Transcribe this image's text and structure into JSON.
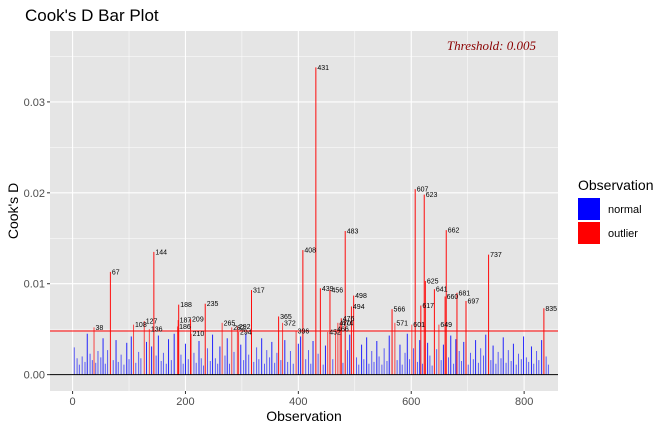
{
  "chart_data": {
    "type": "bar",
    "title": "Cook's D Bar Plot",
    "xlabel": "Observation",
    "ylabel": "Cook's D",
    "xlim": [
      -40,
      860
    ],
    "ylim": [
      -0.0018,
      0.0378
    ],
    "x_ticks": [
      0,
      200,
      400,
      600,
      800
    ],
    "x_tick_labels": [
      "0",
      "200",
      "400",
      "600",
      "800"
    ],
    "y_ticks": [
      0,
      0.01,
      0.02,
      0.03
    ],
    "y_tick_labels": [
      "0.00",
      "0.01",
      "0.02",
      "0.03"
    ],
    "threshold": 0.0048,
    "threshold_label": "Threshold: 0.005",
    "grid": true,
    "legend": {
      "title": "Observation",
      "position": "right",
      "entries": [
        {
          "label": "normal",
          "color": "#0000ff"
        },
        {
          "label": "outlier",
          "color": "#ff0000"
        }
      ]
    },
    "colors": {
      "panel": "#e5e5e5",
      "grid": "#ffffff",
      "normal": "#0000ff",
      "outlier": "#ff0000",
      "threshold_line": "#ff0000",
      "threshold_text": "#8b0000"
    },
    "outliers": [
      {
        "x": 38,
        "y": 0.0052,
        "label": "38"
      },
      {
        "x": 67,
        "y": 0.0113,
        "label": "67"
      },
      {
        "x": 108,
        "y": 0.0055,
        "label": "108"
      },
      {
        "x": 127,
        "y": 0.0059,
        "label": "127"
      },
      {
        "x": 136,
        "y": 0.005,
        "label": "136"
      },
      {
        "x": 144,
        "y": 0.0135,
        "label": "144"
      },
      {
        "x": 186,
        "y": 0.0053,
        "label": "186"
      },
      {
        "x": 187,
        "y": 0.006,
        "label": "187"
      },
      {
        "x": 188,
        "y": 0.0077,
        "label": "188"
      },
      {
        "x": 209,
        "y": 0.0061,
        "label": "209"
      },
      {
        "x": 210,
        "y": 0.0045,
        "label": "210"
      },
      {
        "x": 235,
        "y": 0.0078,
        "label": "235"
      },
      {
        "x": 265,
        "y": 0.0057,
        "label": "265"
      },
      {
        "x": 282,
        "y": 0.0052,
        "label": "282"
      },
      {
        "x": 292,
        "y": 0.0053,
        "label": "292"
      },
      {
        "x": 294,
        "y": 0.0047,
        "label": "294"
      },
      {
        "x": 317,
        "y": 0.0093,
        "label": "317"
      },
      {
        "x": 365,
        "y": 0.0064,
        "label": "365"
      },
      {
        "x": 372,
        "y": 0.0057,
        "label": "372"
      },
      {
        "x": 396,
        "y": 0.0048,
        "label": "396"
      },
      {
        "x": 408,
        "y": 0.0137,
        "label": "408"
      },
      {
        "x": 431,
        "y": 0.0338,
        "label": "431"
      },
      {
        "x": 439,
        "y": 0.0095,
        "label": "439"
      },
      {
        "x": 452,
        "y": 0.0047,
        "label": "452"
      },
      {
        "x": 456,
        "y": 0.0093,
        "label": "456"
      },
      {
        "x": 466,
        "y": 0.005,
        "label": "466"
      },
      {
        "x": 470,
        "y": 0.0057,
        "label": "470"
      },
      {
        "x": 474,
        "y": 0.0057,
        "label": "474"
      },
      {
        "x": 476,
        "y": 0.0062,
        "label": "476"
      },
      {
        "x": 483,
        "y": 0.0158,
        "label": "483"
      },
      {
        "x": 494,
        "y": 0.0075,
        "label": "494"
      },
      {
        "x": 498,
        "y": 0.0087,
        "label": "498"
      },
      {
        "x": 566,
        "y": 0.0072,
        "label": "566"
      },
      {
        "x": 571,
        "y": 0.0057,
        "label": "571"
      },
      {
        "x": 601,
        "y": 0.0055,
        "label": "601"
      },
      {
        "x": 607,
        "y": 0.0204,
        "label": "607"
      },
      {
        "x": 617,
        "y": 0.0076,
        "label": "617"
      },
      {
        "x": 623,
        "y": 0.0198,
        "label": "623"
      },
      {
        "x": 625,
        "y": 0.0103,
        "label": "625"
      },
      {
        "x": 641,
        "y": 0.0094,
        "label": "641"
      },
      {
        "x": 649,
        "y": 0.0055,
        "label": "649"
      },
      {
        "x": 660,
        "y": 0.0086,
        "label": "660"
      },
      {
        "x": 662,
        "y": 0.0159,
        "label": "662"
      },
      {
        "x": 681,
        "y": 0.009,
        "label": "681"
      },
      {
        "x": 697,
        "y": 0.0081,
        "label": "697"
      },
      {
        "x": 737,
        "y": 0.0132,
        "label": "737"
      },
      {
        "x": 835,
        "y": 0.0073,
        "label": "835"
      }
    ],
    "normal_points": [
      [
        3,
        0.003
      ],
      [
        8,
        0.0018
      ],
      [
        12,
        0.0011
      ],
      [
        17,
        0.002
      ],
      [
        22,
        0.0014
      ],
      [
        26,
        0.0045
      ],
      [
        31,
        0.0023
      ],
      [
        35,
        0.0016
      ],
      [
        41,
        0.0013
      ],
      [
        45,
        0.0026
      ],
      [
        50,
        0.0019
      ],
      [
        54,
        0.004
      ],
      [
        58,
        0.0012
      ],
      [
        62,
        0.0027
      ],
      [
        72,
        0.0016
      ],
      [
        77,
        0.0038
      ],
      [
        81,
        0.0014
      ],
      [
        86,
        0.0022
      ],
      [
        91,
        0.0011
      ],
      [
        96,
        0.0035
      ],
      [
        100,
        0.0017
      ],
      [
        104,
        0.0042
      ],
      [
        112,
        0.0013
      ],
      [
        117,
        0.0025
      ],
      [
        121,
        0.0018
      ],
      [
        131,
        0.0036
      ],
      [
        140,
        0.0031
      ],
      [
        148,
        0.0021
      ],
      [
        152,
        0.0043
      ],
      [
        157,
        0.0015
      ],
      [
        161,
        0.0024
      ],
      [
        166,
        0.0012
      ],
      [
        170,
        0.0039
      ],
      [
        175,
        0.0016
      ],
      [
        180,
        0.0045
      ],
      [
        192,
        0.0022
      ],
      [
        196,
        0.0012
      ],
      [
        200,
        0.0034
      ],
      [
        205,
        0.0017
      ],
      [
        215,
        0.0024
      ],
      [
        219,
        0.0013
      ],
      [
        224,
        0.0037
      ],
      [
        228,
        0.0018
      ],
      [
        232,
        0.001
      ],
      [
        239,
        0.0029
      ],
      [
        244,
        0.0015
      ],
      [
        248,
        0.0044
      ],
      [
        253,
        0.0018
      ],
      [
        257,
        0.0012
      ],
      [
        261,
        0.0031
      ],
      [
        270,
        0.0021
      ],
      [
        274,
        0.004
      ],
      [
        278,
        0.0012
      ],
      [
        286,
        0.0025
      ],
      [
        298,
        0.0033
      ],
      [
        303,
        0.0016
      ],
      [
        307,
        0.0045
      ],
      [
        312,
        0.0022
      ],
      [
        321,
        0.0014
      ],
      [
        326,
        0.003
      ],
      [
        330,
        0.0017
      ],
      [
        335,
        0.004
      ],
      [
        340,
        0.0012
      ],
      [
        344,
        0.0027
      ],
      [
        349,
        0.0019
      ],
      [
        353,
        0.0036
      ],
      [
        358,
        0.0013
      ],
      [
        362,
        0.0024
      ],
      [
        369,
        0.0016
      ],
      [
        376,
        0.0038
      ],
      [
        381,
        0.0014
      ],
      [
        386,
        0.0026
      ],
      [
        391,
        0.0012
      ],
      [
        400,
        0.0034
      ],
      [
        404,
        0.0042
      ],
      [
        413,
        0.0017
      ],
      [
        418,
        0.0027
      ],
      [
        422,
        0.0012
      ],
      [
        426,
        0.0037
      ],
      [
        435,
        0.0023
      ],
      [
        444,
        0.0011
      ],
      [
        448,
        0.0032
      ],
      [
        461,
        0.0017
      ],
      [
        479,
        0.0013
      ],
      [
        487,
        0.0027
      ],
      [
        491,
        0.0044
      ],
      [
        503,
        0.0019
      ],
      [
        507,
        0.0011
      ],
      [
        512,
        0.0033
      ],
      [
        516,
        0.0017
      ],
      [
        521,
        0.0041
      ],
      [
        525,
        0.0012
      ],
      [
        530,
        0.0026
      ],
      [
        534,
        0.0014
      ],
      [
        539,
        0.0037
      ],
      [
        543,
        0.002
      ],
      [
        548,
        0.0011
      ],
      [
        552,
        0.0029
      ],
      [
        557,
        0.0015
      ],
      [
        561,
        0.0043
      ],
      [
        575,
        0.0016
      ],
      [
        580,
        0.0033
      ],
      [
        584,
        0.0011
      ],
      [
        589,
        0.0024
      ],
      [
        593,
        0.0045
      ],
      [
        597,
        0.0017
      ],
      [
        604,
        0.0029
      ],
      [
        611,
        0.0014
      ],
      [
        615,
        0.0038
      ],
      [
        620,
        0.0012
      ],
      [
        629,
        0.0035
      ],
      [
        633,
        0.0021
      ],
      [
        637,
        0.001
      ],
      [
        645,
        0.0028
      ],
      [
        653,
        0.0016
      ],
      [
        657,
        0.0033
      ],
      [
        666,
        0.0019
      ],
      [
        670,
        0.0043
      ],
      [
        675,
        0.0012
      ],
      [
        679,
        0.0039
      ],
      [
        685,
        0.0026
      ],
      [
        689,
        0.0015
      ],
      [
        693,
        0.0036
      ],
      [
        701,
        0.0011
      ],
      [
        705,
        0.0024
      ],
      [
        710,
        0.0017
      ],
      [
        714,
        0.0038
      ],
      [
        719,
        0.0013
      ],
      [
        723,
        0.0029
      ],
      [
        728,
        0.0021
      ],
      [
        732,
        0.0044
      ],
      [
        741,
        0.0016
      ],
      [
        745,
        0.0032
      ],
      [
        750,
        0.0012
      ],
      [
        754,
        0.0025
      ],
      [
        759,
        0.0018
      ],
      [
        763,
        0.0041
      ],
      [
        768,
        0.0013
      ],
      [
        772,
        0.0027
      ],
      [
        777,
        0.0015
      ],
      [
        781,
        0.0034
      ],
      [
        786,
        0.0011
      ],
      [
        790,
        0.0023
      ],
      [
        795,
        0.0017
      ],
      [
        799,
        0.0042
      ],
      [
        804,
        0.0019
      ],
      [
        808,
        0.0014
      ],
      [
        813,
        0.0031
      ],
      [
        817,
        0.0012
      ],
      [
        822,
        0.0026
      ],
      [
        826,
        0.0016
      ],
      [
        831,
        0.0038
      ],
      [
        839,
        0.002
      ],
      [
        843,
        0.0011
      ]
    ]
  }
}
